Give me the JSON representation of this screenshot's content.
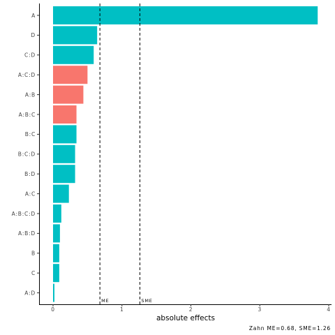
{
  "chart_data": {
    "type": "bar",
    "orientation": "horizontal",
    "xlabel": "absolute effects",
    "ylabel": "",
    "xlim": [
      -0.2,
      4.0
    ],
    "xticks": [
      "0",
      "1",
      "2",
      "3",
      "4"
    ],
    "grid": false,
    "legend": "none",
    "caption": "Zahn ME=0.68, SME=1.26",
    "colors": {
      "positive": "#00BFC4",
      "negative": "#F8766D"
    },
    "bars": [
      {
        "label": "A",
        "value": 3.84,
        "sign": "positive"
      },
      {
        "label": "D",
        "value": 0.64,
        "sign": "positive"
      },
      {
        "label": "C:D",
        "value": 0.59,
        "sign": "positive"
      },
      {
        "label": "A:C:D",
        "value": 0.5,
        "sign": "negative"
      },
      {
        "label": "A:B",
        "value": 0.44,
        "sign": "negative"
      },
      {
        "label": "A:B:C",
        "value": 0.34,
        "sign": "negative"
      },
      {
        "label": "B:C",
        "value": 0.34,
        "sign": "positive"
      },
      {
        "label": "B:C:D",
        "value": 0.32,
        "sign": "positive"
      },
      {
        "label": "B:D",
        "value": 0.32,
        "sign": "positive"
      },
      {
        "label": "A:C",
        "value": 0.23,
        "sign": "positive"
      },
      {
        "label": "A:B:C:D",
        "value": 0.12,
        "sign": "positive"
      },
      {
        "label": "A:B:D",
        "value": 0.1,
        "sign": "positive"
      },
      {
        "label": "B",
        "value": 0.09,
        "sign": "positive"
      },
      {
        "label": "C",
        "value": 0.09,
        "sign": "positive"
      },
      {
        "label": "A:D",
        "value": 0.02,
        "sign": "positive"
      }
    ],
    "reference_lines": [
      {
        "label": "ME",
        "value": 0.68
      },
      {
        "label": "SME",
        "value": 1.26
      }
    ]
  }
}
